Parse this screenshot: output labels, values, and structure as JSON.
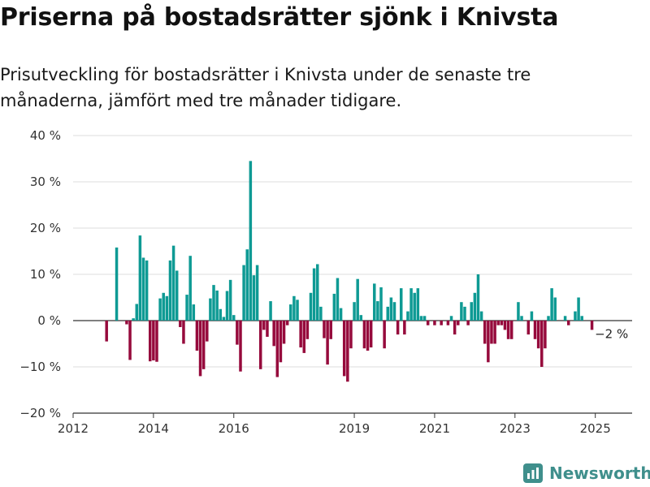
{
  "title": "Priserna på bostadsrätter sjönk i Knivsta",
  "subtitle": "Prisutveckling för bostadsrätter i Knivsta under de senaste tre månaderna, jämfört med tre månader tidigare.",
  "brand": {
    "name": "Newsworthy",
    "icon": "newsworthy-logo-icon",
    "color": "#3f8f8c"
  },
  "colors": {
    "positive": "#0e9a94",
    "negative": "#960a3c",
    "grid": "#dddddd",
    "axis": "#333333"
  },
  "chart_data": {
    "type": "bar",
    "title": "Priserna på bostadsrätter sjönk i Knivsta",
    "subtitle": "Prisutveckling för bostadsrätter i Knivsta under de senaste tre månaderna, jämfört med tre månader tidigare.",
    "xlabel": "",
    "ylabel": "",
    "unit": "%",
    "ylim": [
      -20,
      40
    ],
    "yticks": [
      -20,
      -10,
      0,
      10,
      20,
      30,
      40
    ],
    "ytick_labels": [
      "−20 %",
      "−10 %",
      "0 %",
      "10 %",
      "20 %",
      "30 %",
      "40 %"
    ],
    "xlim": [
      "2012-01",
      "2025-12"
    ],
    "xticks": [
      "2012-01",
      "2014-01",
      "2016-01",
      "2019-01",
      "2021-01",
      "2023-01",
      "2025-01"
    ],
    "xtick_labels": [
      "2012",
      "2014",
      "2016",
      "2019",
      "2021",
      "2023",
      "2025"
    ],
    "grid": true,
    "legend": "none",
    "annotation": {
      "text": "−2 %",
      "x": "2025-01",
      "y": -2
    },
    "series": [
      {
        "values": [
          {
            "x": "2012-11",
            "y": -4.5
          },
          {
            "x": "2013-02",
            "y": 15.8
          },
          {
            "x": "2013-05",
            "y": -0.8
          },
          {
            "x": "2013-06",
            "y": -8.5
          },
          {
            "x": "2013-07",
            "y": 0.5
          },
          {
            "x": "2013-08",
            "y": 3.6
          },
          {
            "x": "2013-09",
            "y": 18.4
          },
          {
            "x": "2013-10",
            "y": 13.6
          },
          {
            "x": "2013-11",
            "y": 13.0
          },
          {
            "x": "2013-12",
            "y": -8.8
          },
          {
            "x": "2014-01",
            "y": -8.6
          },
          {
            "x": "2014-02",
            "y": -8.9
          },
          {
            "x": "2014-03",
            "y": 4.8
          },
          {
            "x": "2014-04",
            "y": 6.0
          },
          {
            "x": "2014-05",
            "y": 5.3
          },
          {
            "x": "2014-06",
            "y": 13.0
          },
          {
            "x": "2014-07",
            "y": 16.2
          },
          {
            "x": "2014-08",
            "y": 10.8
          },
          {
            "x": "2014-09",
            "y": -1.4
          },
          {
            "x": "2014-10",
            "y": -5.0
          },
          {
            "x": "2014-11",
            "y": 5.6
          },
          {
            "x": "2014-12",
            "y": 14.0
          },
          {
            "x": "2015-01",
            "y": 3.5
          },
          {
            "x": "2015-02",
            "y": -6.5
          },
          {
            "x": "2015-03",
            "y": -12.0
          },
          {
            "x": "2015-04",
            "y": -10.5
          },
          {
            "x": "2015-05",
            "y": -4.5
          },
          {
            "x": "2015-06",
            "y": 4.8
          },
          {
            "x": "2015-07",
            "y": 7.7
          },
          {
            "x": "2015-08",
            "y": 6.5
          },
          {
            "x": "2015-09",
            "y": 2.5
          },
          {
            "x": "2015-10",
            "y": 0.8
          },
          {
            "x": "2015-11",
            "y": 6.4
          },
          {
            "x": "2015-12",
            "y": 8.8
          },
          {
            "x": "2016-01",
            "y": 1.2
          },
          {
            "x": "2016-02",
            "y": -5.2
          },
          {
            "x": "2016-03",
            "y": -11.0
          },
          {
            "x": "2016-04",
            "y": 12.0
          },
          {
            "x": "2016-05",
            "y": 15.4
          },
          {
            "x": "2016-06",
            "y": 34.5
          },
          {
            "x": "2016-07",
            "y": 9.8
          },
          {
            "x": "2016-08",
            "y": 12.0
          },
          {
            "x": "2016-09",
            "y": -10.5
          },
          {
            "x": "2016-10",
            "y": -2.0
          },
          {
            "x": "2016-11",
            "y": -3.5
          },
          {
            "x": "2016-12",
            "y": 4.2
          },
          {
            "x": "2017-01",
            "y": -5.5
          },
          {
            "x": "2017-02",
            "y": -12.2
          },
          {
            "x": "2017-03",
            "y": -9.0
          },
          {
            "x": "2017-04",
            "y": -5.0
          },
          {
            "x": "2017-05",
            "y": -1.0
          },
          {
            "x": "2017-06",
            "y": 3.5
          },
          {
            "x": "2017-07",
            "y": 5.3
          },
          {
            "x": "2017-08",
            "y": 4.5
          },
          {
            "x": "2017-09",
            "y": -5.8
          },
          {
            "x": "2017-10",
            "y": -7.0
          },
          {
            "x": "2017-11",
            "y": -4.0
          },
          {
            "x": "2017-12",
            "y": 6.0
          },
          {
            "x": "2018-01",
            "y": 11.3
          },
          {
            "x": "2018-02",
            "y": 12.2
          },
          {
            "x": "2018-03",
            "y": 3.0
          },
          {
            "x": "2018-04",
            "y": -3.8
          },
          {
            "x": "2018-05",
            "y": -9.5
          },
          {
            "x": "2018-06",
            "y": -4.0
          },
          {
            "x": "2018-07",
            "y": 5.8
          },
          {
            "x": "2018-08",
            "y": 9.2
          },
          {
            "x": "2018-09",
            "y": 2.7
          },
          {
            "x": "2018-10",
            "y": -12.0
          },
          {
            "x": "2018-11",
            "y": -13.2
          },
          {
            "x": "2018-12",
            "y": -6.0
          },
          {
            "x": "2019-01",
            "y": 4.0
          },
          {
            "x": "2019-02",
            "y": 9.0
          },
          {
            "x": "2019-03",
            "y": 1.2
          },
          {
            "x": "2019-04",
            "y": -6.0
          },
          {
            "x": "2019-05",
            "y": -6.5
          },
          {
            "x": "2019-06",
            "y": -5.8
          },
          {
            "x": "2019-07",
            "y": 8.0
          },
          {
            "x": "2019-08",
            "y": 4.2
          },
          {
            "x": "2019-09",
            "y": 7.2
          },
          {
            "x": "2019-10",
            "y": -6.0
          },
          {
            "x": "2019-11",
            "y": 3.0
          },
          {
            "x": "2019-12",
            "y": 5.0
          },
          {
            "x": "2020-01",
            "y": 4.0
          },
          {
            "x": "2020-02",
            "y": -3.0
          },
          {
            "x": "2020-03",
            "y": 7.0
          },
          {
            "x": "2020-04",
            "y": -3.0
          },
          {
            "x": "2020-05",
            "y": 2.0
          },
          {
            "x": "2020-06",
            "y": 7.0
          },
          {
            "x": "2020-07",
            "y": 6.0
          },
          {
            "x": "2020-08",
            "y": 7.0
          },
          {
            "x": "2020-09",
            "y": 1.0
          },
          {
            "x": "2020-10",
            "y": 1.0
          },
          {
            "x": "2020-11",
            "y": -1.0
          },
          {
            "x": "2021-01",
            "y": -1.0
          },
          {
            "x": "2021-03",
            "y": -1.0
          },
          {
            "x": "2021-05",
            "y": -1.0
          },
          {
            "x": "2021-06",
            "y": 1.0
          },
          {
            "x": "2021-07",
            "y": -3.0
          },
          {
            "x": "2021-08",
            "y": -1.0
          },
          {
            "x": "2021-09",
            "y": 4.0
          },
          {
            "x": "2021-10",
            "y": 3.0
          },
          {
            "x": "2021-11",
            "y": -1.0
          },
          {
            "x": "2021-12",
            "y": 4.0
          },
          {
            "x": "2022-01",
            "y": 6.0
          },
          {
            "x": "2022-02",
            "y": 10.0
          },
          {
            "x": "2022-03",
            "y": 2.0
          },
          {
            "x": "2022-04",
            "y": -5.0
          },
          {
            "x": "2022-05",
            "y": -9.0
          },
          {
            "x": "2022-06",
            "y": -5.0
          },
          {
            "x": "2022-07",
            "y": -5.0
          },
          {
            "x": "2022-08",
            "y": -1.0
          },
          {
            "x": "2022-09",
            "y": -1.0
          },
          {
            "x": "2022-10",
            "y": -2.0
          },
          {
            "x": "2022-11",
            "y": -4.0
          },
          {
            "x": "2022-12",
            "y": -4.0
          },
          {
            "x": "2023-02",
            "y": 4.0
          },
          {
            "x": "2023-03",
            "y": 1.0
          },
          {
            "x": "2023-05",
            "y": -3.0
          },
          {
            "x": "2023-06",
            "y": 2.0
          },
          {
            "x": "2023-07",
            "y": -4.0
          },
          {
            "x": "2023-08",
            "y": -6.0
          },
          {
            "x": "2023-09",
            "y": -10.0
          },
          {
            "x": "2023-10",
            "y": -6.0
          },
          {
            "x": "2023-11",
            "y": 1.0
          },
          {
            "x": "2023-12",
            "y": 7.0
          },
          {
            "x": "2024-01",
            "y": 5.0
          },
          {
            "x": "2024-04",
            "y": 1.0
          },
          {
            "x": "2024-05",
            "y": -1.0
          },
          {
            "x": "2024-07",
            "y": 2.0
          },
          {
            "x": "2024-08",
            "y": 5.0
          },
          {
            "x": "2024-09",
            "y": 1.0
          },
          {
            "x": "2024-12",
            "y": -2.0
          }
        ]
      }
    ]
  }
}
